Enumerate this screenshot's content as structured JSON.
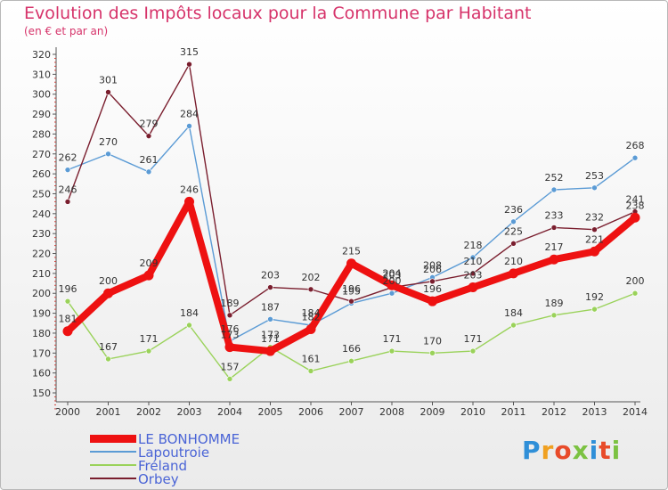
{
  "header": {
    "title": "Evolution des Impôts locaux pour la Commune par Habitant",
    "subtitle": "(en € et par an)"
  },
  "logo": {
    "text": "Proxiti"
  },
  "chart_data": {
    "type": "line",
    "title": "Evolution des Impôts locaux pour la Commune par Habitant",
    "subtitle": "(en € et par an)",
    "xlabel": "",
    "ylabel": "",
    "ylim": [
      150,
      320
    ],
    "yticks": [
      150,
      160,
      170,
      180,
      190,
      200,
      210,
      220,
      230,
      240,
      250,
      260,
      270,
      280,
      290,
      300,
      310,
      320
    ],
    "categories": [
      "2000",
      "2001",
      "2002",
      "2003",
      "2004",
      "2005",
      "2006",
      "2007",
      "2008",
      "2009",
      "2010",
      "2011",
      "2012",
      "2013",
      "2014"
    ],
    "grid": false,
    "legend_position": "bottom-left",
    "series": [
      {
        "name": "LE BONHOMME",
        "color": "#ee1111",
        "emphasis": true,
        "values": [
          181,
          200,
          209,
          246,
          173,
          171,
          182,
          215,
          204,
          196,
          203,
          210,
          217,
          221,
          238
        ]
      },
      {
        "name": "Lapoutroie",
        "color": "#5b9bd5",
        "values": [
          262,
          270,
          261,
          284,
          176,
          187,
          184,
          195,
          200,
          208,
          218,
          236,
          252,
          253,
          268
        ]
      },
      {
        "name": "Fréland",
        "color": "#9ad25a",
        "values": [
          196,
          167,
          171,
          184,
          157,
          173,
          161,
          166,
          171,
          170,
          171,
          184,
          189,
          192,
          200
        ]
      },
      {
        "name": "Orbey",
        "color": "#7a1e2e",
        "values": [
          246,
          301,
          279,
          315,
          189,
          203,
          202,
          196,
          203,
          206,
          210,
          225,
          233,
          232,
          241
        ]
      }
    ]
  }
}
